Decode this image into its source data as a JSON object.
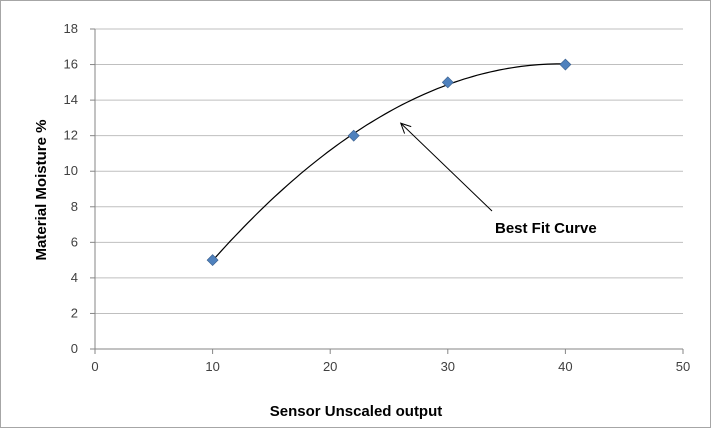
{
  "chart_data": {
    "type": "scatter",
    "x": [
      10,
      22,
      30,
      40
    ],
    "y": [
      5,
      12,
      15,
      16
    ],
    "series": [
      {
        "values": [
          5,
          12,
          15,
          16
        ],
        "x": [
          10,
          22,
          30,
          40
        ]
      }
    ],
    "xlabel": "Sensor Unscaled output",
    "ylabel": "Material Moisture %",
    "xlim": [
      0,
      50
    ],
    "ylim": [
      0,
      18
    ],
    "xticks": [
      0,
      10,
      20,
      30,
      40,
      50
    ],
    "yticks": [
      0,
      2,
      4,
      6,
      8,
      10,
      12,
      14,
      16,
      18
    ],
    "grid": "horizontal",
    "trendline": "polynomial",
    "annotation": {
      "text": "Best Fit Curve",
      "points_to": [
        26,
        12.7
      ]
    },
    "colors": {
      "marker": "#4f81bd",
      "curve": "#000000",
      "grid": "#bfbfbf"
    }
  }
}
